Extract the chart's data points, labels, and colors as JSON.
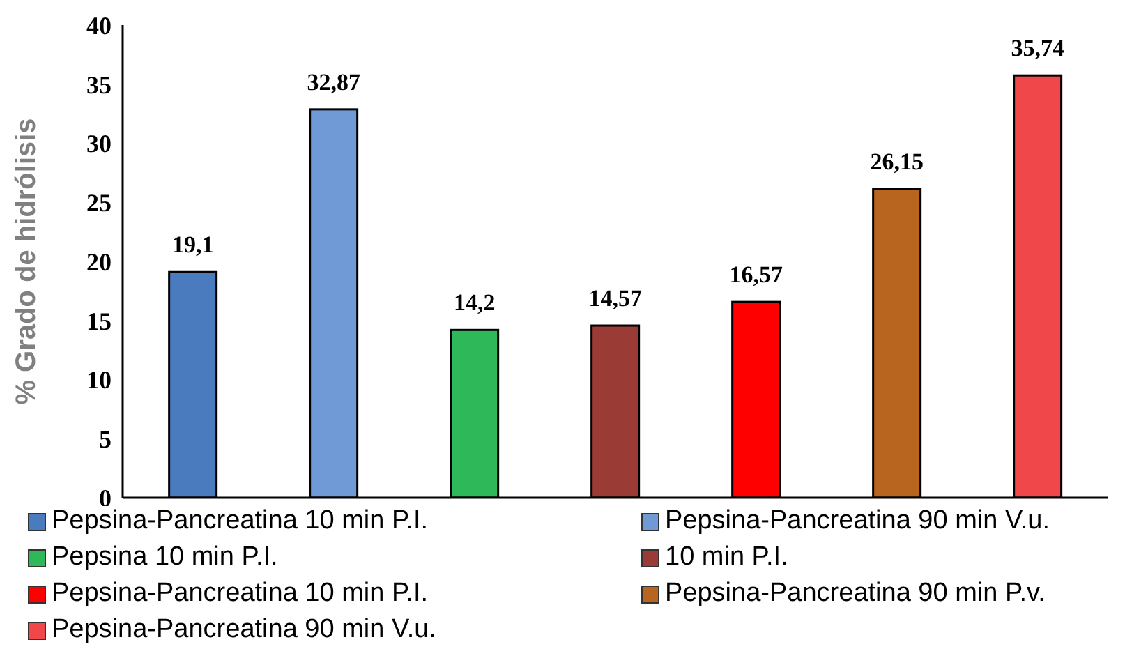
{
  "chart_data": {
    "type": "bar",
    "ylabel": "% Grado de hidrólisis",
    "categories": [
      null,
      null,
      null,
      null,
      null,
      null,
      null
    ],
    "series": [
      {
        "name": "Pepsina-Pancreatina 10 min P.I.",
        "color": "#4a7bbf",
        "values": [
          19.1,
          null,
          null,
          null,
          null,
          null,
          null
        ],
        "value_labels": [
          "19,1",
          null,
          null,
          null,
          null,
          null,
          null
        ]
      },
      {
        "name": "Pepsina-Pancreatina 90 min V.u.",
        "color": "#6f9ad6",
        "values": [
          null,
          32.87,
          null,
          null,
          null,
          null,
          null
        ],
        "value_labels": [
          null,
          "32,87",
          null,
          null,
          null,
          null,
          null
        ]
      },
      {
        "name": "Pepsina 10 min P.I.",
        "color": "#2fb85a",
        "values": [
          null,
          null,
          14.2,
          null,
          null,
          null,
          null
        ],
        "value_labels": [
          null,
          null,
          "14,2",
          null,
          null,
          null,
          null
        ]
      },
      {
        "name": "10 min P.I.",
        "color": "#9a3b36",
        "values": [
          null,
          null,
          null,
          14.57,
          null,
          null,
          null
        ],
        "value_labels": [
          null,
          null,
          null,
          "14,57",
          null,
          null,
          null
        ]
      },
      {
        "name": "Pepsina-Pancreatina 10 min P.I.",
        "color": "#ff0000",
        "values": [
          null,
          null,
          null,
          null,
          16.57,
          null,
          null
        ],
        "value_labels": [
          null,
          null,
          null,
          null,
          "16,57",
          null,
          null
        ]
      },
      {
        "name": "Pepsina-Pancreatina 90 min P.v.",
        "color": "#b8651f",
        "values": [
          null,
          null,
          null,
          null,
          null,
          26.15,
          null
        ],
        "value_labels": [
          null,
          null,
          null,
          null,
          null,
          "26,15",
          null
        ]
      },
      {
        "name": "Pepsina-Pancreatina 90 min V.u.",
        "color": "#f0484a",
        "values": [
          null,
          null,
          null,
          null,
          null,
          null,
          35.74
        ],
        "value_labels": [
          null,
          null,
          null,
          null,
          null,
          null,
          "35,74"
        ]
      }
    ],
    "ylim": [
      0,
      40
    ],
    "yticks": [
      0,
      5,
      10,
      15,
      20,
      25,
      30,
      35,
      40
    ],
    "legend": "bottom"
  }
}
